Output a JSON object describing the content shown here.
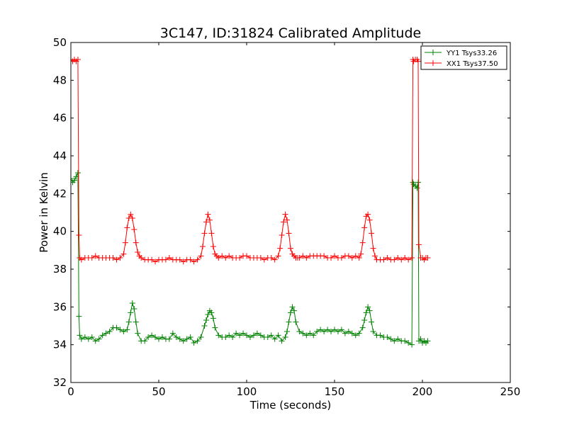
{
  "chart_data": {
    "type": "line",
    "title": "3C147, ID:31824 Calibrated Amplitude",
    "xlabel": "Time (seconds)",
    "ylabel": "Power in Kelvin",
    "xlim": [
      0,
      250
    ],
    "ylim": [
      32,
      50
    ],
    "xticks": [
      0,
      50,
      100,
      150,
      200,
      250
    ],
    "yticks": [
      32,
      34,
      36,
      38,
      40,
      42,
      44,
      46,
      48,
      50
    ],
    "grid": false,
    "legend_position": "top-right",
    "marker": "plus",
    "series": [
      {
        "name": "YY1 Tsys33.26",
        "color": "#008000",
        "x": [
          0,
          1,
          2,
          3,
          4,
          4.6,
          5,
          6,
          8,
          10,
          12,
          14,
          16,
          18,
          20,
          22,
          24,
          26,
          28,
          30,
          32,
          33,
          34,
          35,
          36,
          37,
          38,
          40,
          42,
          44,
          46,
          48,
          50,
          52,
          54,
          56,
          58,
          60,
          62,
          64,
          66,
          68,
          70,
          72,
          74,
          76,
          77,
          78,
          79,
          80,
          81,
          82,
          84,
          86,
          88,
          90,
          92,
          94,
          96,
          98,
          100,
          102,
          104,
          106,
          108,
          110,
          112,
          114,
          116,
          118,
          120,
          122,
          123,
          124,
          125,
          126,
          127,
          128,
          130,
          132,
          134,
          136,
          138,
          140,
          142,
          144,
          146,
          148,
          150,
          152,
          154,
          156,
          158,
          160,
          162,
          164,
          166,
          167,
          168,
          169,
          170,
          171,
          172,
          174,
          176,
          178,
          180,
          182,
          184,
          186,
          188,
          190,
          192,
          194,
          194.6,
          195,
          196,
          197,
          197.6,
          198,
          199,
          200,
          201,
          202,
          203
        ],
        "y": [
          42.8,
          42.6,
          42.7,
          42.9,
          43.1,
          35.5,
          34.5,
          34.3,
          34.4,
          34.3,
          34.4,
          34.2,
          34.3,
          34.5,
          34.6,
          34.7,
          34.9,
          34.9,
          34.8,
          34.7,
          34.8,
          35.2,
          35.7,
          36.2,
          35.9,
          35.2,
          34.6,
          34.2,
          34.2,
          34.4,
          34.5,
          34.4,
          34.3,
          34.4,
          34.3,
          34.3,
          34.6,
          34.4,
          34.3,
          34.2,
          34.3,
          34.4,
          34.1,
          34.2,
          34.4,
          35.0,
          35.3,
          35.6,
          35.8,
          35.7,
          35.4,
          34.9,
          34.5,
          34.4,
          34.4,
          34.5,
          34.4,
          34.6,
          34.5,
          34.6,
          34.5,
          34.4,
          34.5,
          34.6,
          34.5,
          34.4,
          34.4,
          34.5,
          34.3,
          34.5,
          34.2,
          34.4,
          34.7,
          35.2,
          35.7,
          36.0,
          35.8,
          35.2,
          34.7,
          34.6,
          34.5,
          34.6,
          34.5,
          34.7,
          34.8,
          34.7,
          34.8,
          34.7,
          34.8,
          34.7,
          34.8,
          34.6,
          34.7,
          34.6,
          34.5,
          34.6,
          34.9,
          35.3,
          35.7,
          36.0,
          35.8,
          35.2,
          34.7,
          34.5,
          34.5,
          34.4,
          34.4,
          34.3,
          34.2,
          34.3,
          34.2,
          34.2,
          34.1,
          34.0,
          42.6,
          42.5,
          42.4,
          42.3,
          42.6,
          34.2,
          34.3,
          34.1,
          34.2,
          34.1,
          34.2
        ]
      },
      {
        "name": "XX1 Tsys37.50",
        "color": "#ff0000",
        "x": [
          0,
          1,
          2,
          3,
          4,
          4.6,
          5,
          6,
          8,
          10,
          12,
          14,
          16,
          18,
          20,
          22,
          24,
          26,
          28,
          30,
          31,
          32,
          33,
          34,
          35,
          36,
          37,
          38,
          39,
          40,
          42,
          44,
          46,
          48,
          50,
          52,
          54,
          56,
          58,
          60,
          62,
          64,
          66,
          68,
          70,
          72,
          74,
          75,
          76,
          77,
          78,
          79,
          80,
          81,
          82,
          83,
          84,
          86,
          88,
          90,
          92,
          94,
          96,
          98,
          100,
          102,
          104,
          106,
          108,
          110,
          112,
          114,
          116,
          118,
          119,
          120,
          121,
          122,
          123,
          124,
          125,
          126,
          127,
          128,
          129,
          130,
          132,
          134,
          136,
          138,
          140,
          142,
          144,
          146,
          148,
          150,
          152,
          154,
          156,
          158,
          160,
          162,
          164,
          165,
          166,
          167,
          168,
          169,
          170,
          171,
          172,
          173,
          174,
          176,
          178,
          180,
          182,
          184,
          186,
          188,
          190,
          192,
          194,
          194.6,
          195,
          196,
          197,
          197.6,
          198,
          199,
          200,
          201,
          202,
          203
        ],
        "y": [
          49.1,
          49.0,
          49.1,
          49.0,
          49.1,
          39.8,
          38.6,
          38.5,
          38.6,
          38.6,
          38.6,
          38.7,
          38.6,
          38.6,
          38.6,
          38.6,
          38.6,
          38.5,
          38.6,
          38.8,
          39.4,
          40.2,
          40.7,
          40.9,
          40.7,
          40.1,
          39.4,
          38.9,
          38.7,
          38.6,
          38.5,
          38.5,
          38.5,
          38.4,
          38.5,
          38.5,
          38.5,
          38.6,
          38.5,
          38.5,
          38.5,
          38.4,
          38.5,
          38.5,
          38.4,
          38.5,
          38.7,
          39.2,
          39.9,
          40.5,
          40.9,
          40.6,
          39.9,
          39.2,
          38.8,
          38.7,
          38.6,
          38.7,
          38.6,
          38.7,
          38.6,
          38.6,
          38.6,
          38.7,
          38.7,
          38.6,
          38.6,
          38.6,
          38.6,
          38.5,
          38.6,
          38.6,
          38.5,
          38.7,
          39.1,
          39.8,
          40.5,
          40.9,
          40.6,
          39.9,
          39.1,
          38.8,
          38.7,
          38.6,
          38.6,
          38.6,
          38.7,
          38.6,
          38.7,
          38.7,
          38.7,
          38.7,
          38.7,
          38.6,
          38.6,
          38.7,
          38.6,
          38.6,
          38.7,
          38.7,
          38.6,
          38.7,
          38.6,
          38.8,
          39.4,
          40.2,
          40.8,
          40.9,
          40.6,
          39.9,
          39.1,
          38.7,
          38.5,
          38.5,
          38.5,
          38.6,
          38.5,
          38.5,
          38.6,
          38.5,
          38.6,
          38.5,
          38.6,
          49.1,
          49.0,
          49.1,
          49.1,
          49.0,
          39.3,
          38.6,
          38.6,
          38.5,
          38.6,
          38.6
        ]
      }
    ]
  }
}
